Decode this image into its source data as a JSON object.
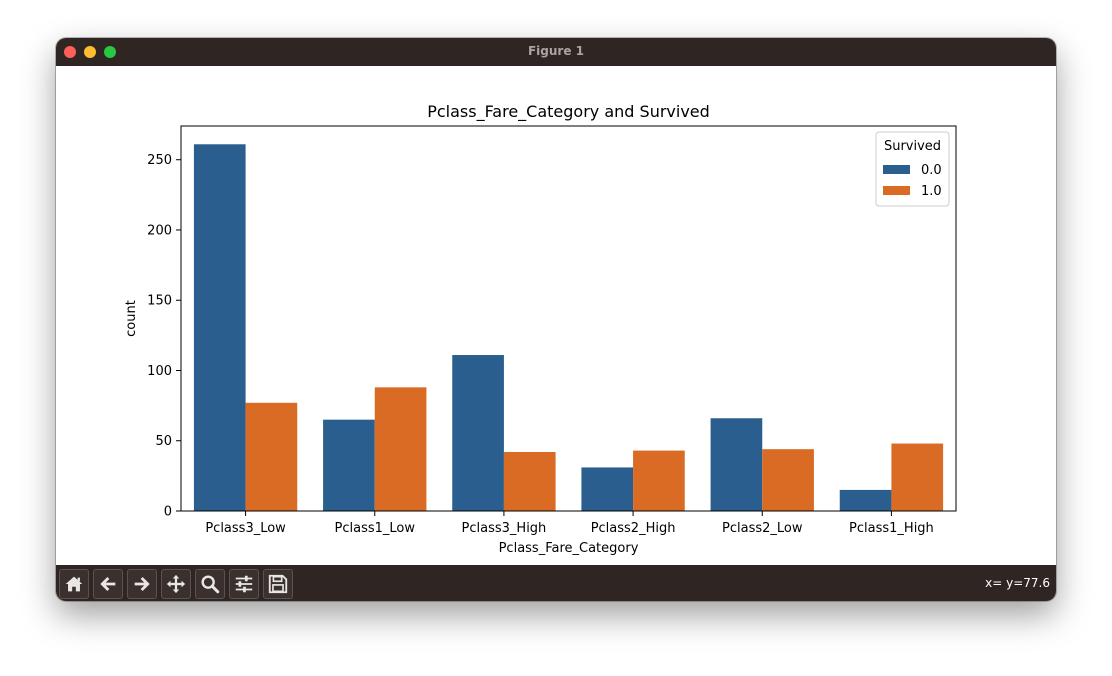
{
  "window": {
    "title": "Figure 1"
  },
  "toolbar": {
    "tools": [
      {
        "icon": "home-icon"
      },
      {
        "icon": "back-arrow-icon"
      },
      {
        "icon": "forward-arrow-icon"
      },
      {
        "icon": "pan-move-icon"
      },
      {
        "icon": "zoom-magnifier-icon"
      },
      {
        "icon": "configure-subplots-icon"
      },
      {
        "icon": "save-floppy-icon"
      }
    ],
    "coords": "x= y=77.6"
  },
  "chart_data": {
    "type": "bar",
    "title": "Pclass_Fare_Category and Survived",
    "xlabel": "Pclass_Fare_Category",
    "ylabel": "count",
    "categories": [
      "Pclass3_Low",
      "Pclass1_Low",
      "Pclass3_High",
      "Pclass2_High",
      "Pclass2_Low",
      "Pclass1_High"
    ],
    "series": [
      {
        "name": "0.0",
        "color": "#2a5e8e",
        "values": [
          261,
          65,
          111,
          31,
          66,
          15
        ]
      },
      {
        "name": "1.0",
        "color": "#d96b24",
        "values": [
          77,
          88,
          42,
          43,
          44,
          48
        ]
      }
    ],
    "ylim": [
      0,
      274
    ],
    "yticks": [
      0,
      50,
      100,
      150,
      200,
      250
    ],
    "legend": {
      "title": "Survived",
      "placement": "upper-right"
    },
    "grid": false
  }
}
